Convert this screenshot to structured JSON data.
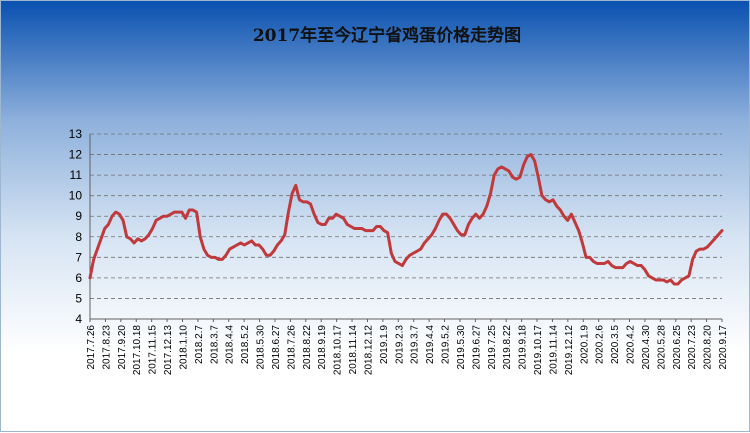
{
  "chart_data": {
    "type": "line",
    "title": "2017年至今辽宁省鸡蛋价格走势图",
    "xlabel": "",
    "ylabel": "",
    "ylim": [
      4,
      13
    ],
    "yticks": [
      4,
      5,
      6,
      7,
      8,
      9,
      10,
      11,
      12,
      13
    ],
    "grid": true,
    "legend": "none",
    "line_color": "#c0393b",
    "x_tick_labels": [
      "2017.7.26",
      "2017.8.23",
      "2017.9.20",
      "2017.10.18",
      "2017.11.15",
      "2017.12.13",
      "2018.1.10",
      "2018.2.7",
      "2018.3.7",
      "2018.4.4",
      "2018.5.2",
      "2018.5.30",
      "2018.6.27",
      "2018.7.26",
      "2018.8.22",
      "2018.9.19",
      "2018.10.17",
      "2018.11.14",
      "2018.12.12",
      "2019.1.9",
      "2019.2.3",
      "2019.3.7",
      "2019.4.4",
      "2019.5.2",
      "2019.5.30",
      "2019.6.27",
      "2019.7.25",
      "2019.8.22",
      "2019.9.18",
      "2019.10.17",
      "2019.11.14",
      "2019.12.12",
      "2020.1.9",
      "2020.2.6",
      "2020.3.5",
      "2020.4.2",
      "2020.4.30",
      "2020.5.28",
      "2020.6.25",
      "2020.7.23",
      "2020.8.20",
      "2020.9.17"
    ],
    "series": [
      {
        "values": [
          6.0,
          6.9,
          7.4,
          7.9,
          8.4,
          8.6,
          9.0,
          9.2,
          9.1,
          8.8,
          8.0,
          7.9,
          7.7,
          7.9,
          7.8,
          7.9,
          8.1,
          8.4,
          8.8,
          8.9,
          9.0,
          9.0,
          9.1,
          9.2,
          9.2,
          9.2,
          8.9,
          9.3,
          9.3,
          9.2,
          8.0,
          7.4,
          7.1,
          7.0,
          7.0,
          6.9,
          6.9,
          7.1,
          7.4,
          7.5,
          7.6,
          7.7,
          7.6,
          7.7,
          7.8,
          7.6,
          7.6,
          7.4,
          7.1,
          7.1,
          7.3,
          7.6,
          7.8,
          8.1,
          9.2,
          10.1,
          10.5,
          9.8,
          9.7,
          9.7,
          9.6,
          9.1,
          8.7,
          8.6,
          8.6,
          8.9,
          8.9,
          9.1,
          9.0,
          8.9,
          8.6,
          8.5,
          8.4,
          8.4,
          8.4,
          8.3,
          8.3,
          8.3,
          8.5,
          8.5,
          8.3,
          8.2,
          7.2,
          6.8,
          6.7,
          6.6,
          6.9,
          7.1,
          7.2,
          7.3,
          7.4,
          7.7,
          7.9,
          8.1,
          8.4,
          8.8,
          9.1,
          9.1,
          8.9,
          8.6,
          8.3,
          8.1,
          8.1,
          8.6,
          8.9,
          9.1,
          8.9,
          9.1,
          9.5,
          10.1,
          11.0,
          11.3,
          11.4,
          11.3,
          11.2,
          10.9,
          10.8,
          10.9,
          11.5,
          11.9,
          12.0,
          11.7,
          10.9,
          10.0,
          9.8,
          9.7,
          9.8,
          9.5,
          9.3,
          9.0,
          8.8,
          9.1,
          8.7,
          8.3,
          7.7,
          7.0,
          7.0,
          6.8,
          6.7,
          6.7,
          6.7,
          6.8,
          6.6,
          6.5,
          6.5,
          6.5,
          6.7,
          6.8,
          6.7,
          6.6,
          6.6,
          6.4,
          6.1,
          6.0,
          5.9,
          5.9,
          5.9,
          5.8,
          5.9,
          5.7,
          5.7,
          5.9,
          6.0,
          6.1,
          6.9,
          7.3,
          7.4,
          7.4,
          7.5,
          7.7,
          7.9,
          8.1,
          8.3
        ]
      }
    ]
  }
}
